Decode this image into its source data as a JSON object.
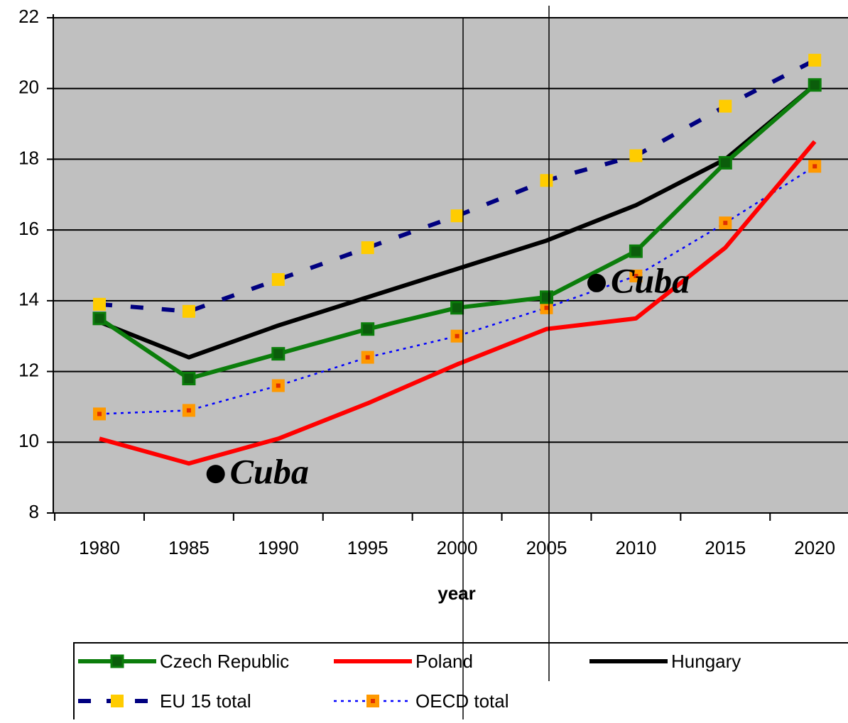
{
  "chart_data": {
    "type": "line",
    "x_label": "year",
    "categories": [
      "1980",
      "1985",
      "1990",
      "1995",
      "2000",
      "2005",
      "2010",
      "2015",
      "2020"
    ],
    "ylim": [
      8,
      22
    ],
    "yticks": [
      8,
      10,
      12,
      14,
      16,
      18,
      20,
      22
    ],
    "grid": true,
    "background": "#c0c0c0",
    "series": [
      {
        "name": "Czech Republic",
        "color": "#0b7d0b",
        "line_style": "solid",
        "marker_color": "#0b5d0b",
        "values": [
          13.5,
          11.8,
          12.5,
          13.2,
          13.8,
          14.1,
          15.4,
          17.9,
          20.1
        ]
      },
      {
        "name": "Poland",
        "color": "#ff0000",
        "line_style": "solid",
        "values": [
          10.1,
          9.4,
          10.1,
          11.1,
          12.2,
          13.2,
          13.5,
          15.5,
          18.5
        ]
      },
      {
        "name": "Hungary",
        "color": "#000000",
        "line_style": "solid",
        "values": [
          13.4,
          12.4,
          13.3,
          14.1,
          14.9,
          15.7,
          16.7,
          18.0,
          20.1
        ]
      },
      {
        "name": "EU 15 total",
        "color": "#000080",
        "line_style": "dashed",
        "marker_color": "#ffcc00",
        "values": [
          13.9,
          13.7,
          14.6,
          15.5,
          16.4,
          17.4,
          18.1,
          19.5,
          20.8
        ]
      },
      {
        "name": "OECD total",
        "color": "#0000ff",
        "line_style": "dotted",
        "marker_color": "#ff9900",
        "values": [
          10.8,
          10.9,
          11.6,
          12.4,
          13.0,
          13.8,
          14.7,
          16.2,
          17.8
        ]
      }
    ],
    "annotations": [
      {
        "text": "Cuba",
        "x": 1986.5,
        "y": 9.1
      },
      {
        "text": "Cuba",
        "x": 2007.8,
        "y": 14.5
      }
    ]
  }
}
